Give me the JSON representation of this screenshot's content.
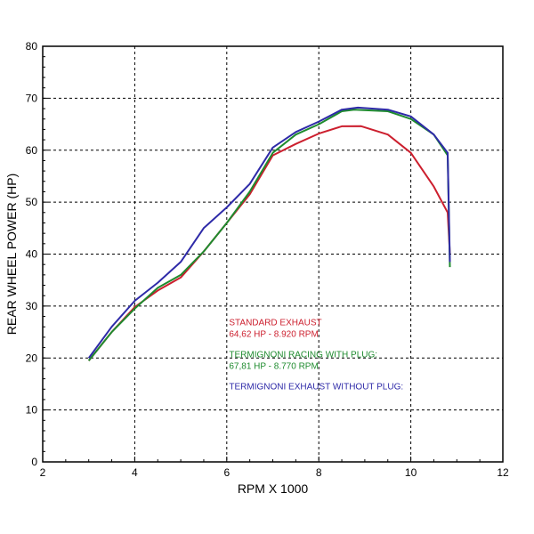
{
  "chart_data": {
    "type": "line",
    "xlabel": "RPM X 1000",
    "ylabel": "REAR WHEEL POWER (HP)",
    "xlim": [
      2,
      12
    ],
    "ylim": [
      0,
      80
    ],
    "xticks": [
      "2",
      "4",
      "6",
      "8",
      "10",
      "12"
    ],
    "yticks": [
      "0",
      "10",
      "20",
      "30",
      "40",
      "50",
      "60",
      "70",
      "80"
    ],
    "grid": true,
    "series": [
      {
        "name": "STANDARD EXHAUST",
        "summary": "64,62 HP - 8.920 RPM",
        "color": "#cc1f2e",
        "x": [
          3.0,
          3.5,
          4.0,
          4.5,
          5.0,
          5.5,
          6.0,
          6.5,
          7.0,
          7.5,
          8.0,
          8.5,
          8.92,
          9.5,
          10.0,
          10.5,
          10.8,
          10.85
        ],
        "y": [
          19.5,
          25.0,
          29.8,
          33.0,
          35.5,
          40.5,
          46.0,
          51.5,
          59.0,
          61.2,
          63.2,
          64.6,
          64.62,
          63.0,
          59.5,
          53.0,
          48.0,
          40.0
        ]
      },
      {
        "name": "TERMIGNONI RACING WITH PLUG:",
        "summary": "67,81 HP - 8.770 RPM",
        "color": "#1e8b2e",
        "x": [
          3.0,
          3.5,
          4.0,
          4.5,
          5.0,
          5.5,
          6.0,
          6.5,
          7.0,
          7.5,
          8.0,
          8.5,
          8.77,
          9.5,
          10.0,
          10.5,
          10.8,
          10.85
        ],
        "y": [
          19.5,
          25.0,
          29.5,
          33.5,
          36.0,
          40.5,
          46.0,
          52.0,
          59.5,
          63.0,
          65.0,
          67.5,
          67.81,
          67.5,
          66.0,
          63.0,
          59.0,
          37.5
        ]
      },
      {
        "name": "TERMIGNONI EXHAUST WITHOUT PLUG:",
        "summary": "",
        "color": "#2e2aa8",
        "x": [
          3.0,
          3.5,
          4.0,
          4.5,
          5.0,
          5.5,
          6.0,
          6.5,
          7.0,
          7.5,
          8.0,
          8.5,
          8.85,
          9.5,
          10.0,
          10.5,
          10.8,
          10.85
        ],
        "y": [
          20.0,
          26.0,
          31.0,
          34.5,
          38.5,
          45.0,
          49.0,
          53.5,
          60.5,
          63.5,
          65.5,
          67.8,
          68.2,
          67.8,
          66.5,
          63.0,
          59.5,
          38.5
        ]
      }
    ]
  }
}
